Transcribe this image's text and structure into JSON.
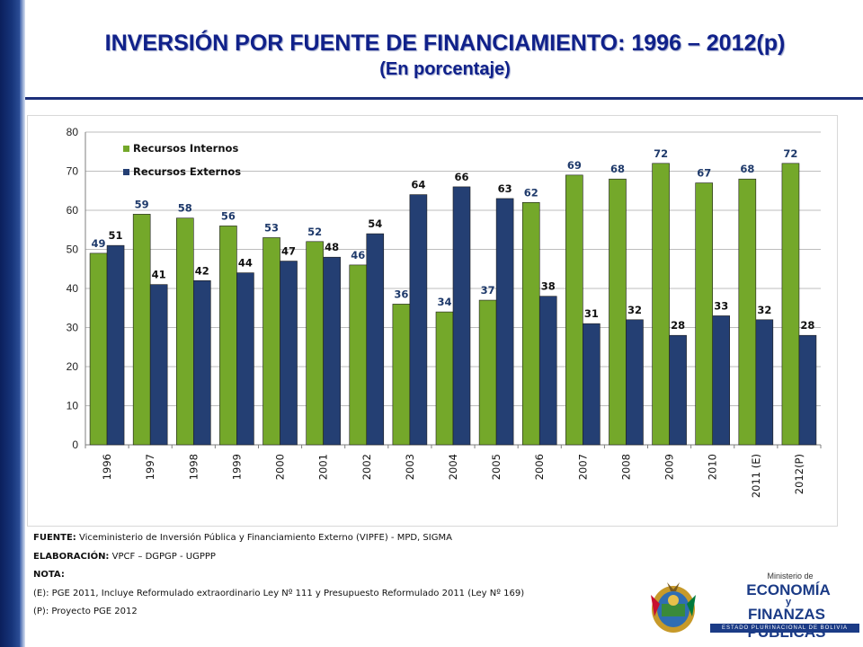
{
  "header": {
    "title": "INVERSIÓN POR FUENTE DE FINANCIAMIENTO: 1996 – 2012(p)",
    "subtitle": "(En porcentaje)"
  },
  "chart_data": {
    "type": "bar",
    "categories": [
      "1996",
      "1997",
      "1998",
      "1999",
      "2000",
      "2001",
      "2002",
      "2003",
      "2004",
      "2005",
      "2006",
      "2007",
      "2008",
      "2009",
      "2010",
      "2011 (E)",
      "2012(P)"
    ],
    "series": [
      {
        "name": "Recursos Internos",
        "color": "#74a82a",
        "values": [
          49,
          59,
          58,
          56,
          53,
          52,
          46,
          36,
          34,
          37,
          62,
          69,
          68,
          72,
          67,
          68,
          72
        ]
      },
      {
        "name": "Recursos Externos",
        "color": "#243f73",
        "values": [
          51,
          41,
          42,
          44,
          47,
          48,
          54,
          64,
          66,
          63,
          38,
          31,
          32,
          28,
          33,
          32,
          28
        ]
      }
    ],
    "ylim": [
      0,
      80
    ],
    "yticks": [
      0,
      10,
      20,
      30,
      40,
      50,
      60,
      70,
      80
    ],
    "grid": true,
    "legend_position": "top-left",
    "xlabel": "",
    "ylabel": ""
  },
  "notes": {
    "fuente_label": "FUENTE:",
    "fuente_text": " Viceministerio de Inversión Pública y Financiamiento Externo (VIPFE) - MPD, SIGMA",
    "elaboracion_label": "ELABORACIÓN:",
    "elaboracion_text": " VPCF – DGPGP - UGPPP",
    "nota_label": "NOTA:",
    "nota_e": "(E): PGE 2011, Incluye Reformulado extraordinario Ley Nº 111 y Presupuesto Reformulado 2011 (Ley Nº 169)",
    "nota_p": "(P): Proyecto PGE 2012"
  },
  "logo": {
    "ministerio": "Ministerio de",
    "economia": "ECONOMÍA",
    "y": "y",
    "finanzas": "FINANZAS PÚBLICAS",
    "estado": "ESTADO PLURINACIONAL DE BOLIVIA"
  }
}
